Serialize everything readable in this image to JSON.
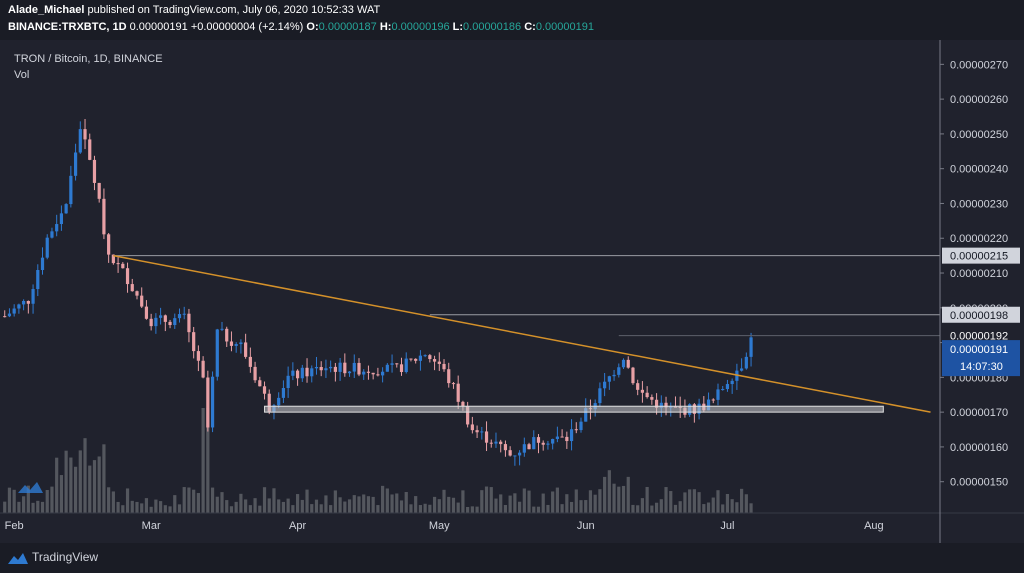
{
  "header": {
    "author": "Alade_Michael",
    "published": "published on TradingView.com, July 06, 2020 10:52:33 WAT",
    "symbol": "BINANCE:TRXBTC, 1D",
    "last": "0.00000191",
    "change": "+0.00000004 (+2.14%)",
    "o_label": "O:",
    "o_value": "0.00000187",
    "h_label": "H:",
    "h_value": "0.00000196",
    "l_label": "L:",
    "l_value": "0.00000186",
    "c_label": "C:",
    "c_value": "0.00000191"
  },
  "legend": {
    "title": "TRON / Bitcoin, 1D, BINANCE",
    "vol": "Vol"
  },
  "footer": {
    "brand": "TradingView"
  },
  "colors": {
    "bg": "#20222d",
    "up": "#2e7ad1",
    "down": "#e8a0a5",
    "trendline": "#d4912a",
    "volume": "#6b6d74",
    "level_line": "#9a9ca3",
    "current_price_bg": "#1e53a3"
  },
  "chart_data": {
    "type": "candlestick",
    "symbol": "TRON / Bitcoin",
    "timeframe": "1D",
    "exchange": "BINANCE",
    "y_ticks": [
      "0.00000270",
      "0.00000260",
      "0.00000250",
      "0.00000240",
      "0.00000230",
      "0.00000220",
      "0.00000210",
      "0.00000200",
      "0.00000190",
      "0.00000180",
      "0.00000170",
      "0.00000160",
      "0.00000150"
    ],
    "ylim": [
      1.41e-06,
      2.77e-06
    ],
    "x_ticks": [
      {
        "label": "Feb",
        "date": "2020-02-01"
      },
      {
        "label": "Mar",
        "date": "2020-03-01"
      },
      {
        "label": "Apr",
        "date": "2020-04-01"
      },
      {
        "label": "May",
        "date": "2020-05-01"
      },
      {
        "label": "Jun",
        "date": "2020-06-01"
      },
      {
        "label": "Jul",
        "date": "2020-07-01"
      },
      {
        "label": "Aug",
        "date": "2020-08-01"
      }
    ],
    "xlim": [
      "2020-01-29",
      "2020-08-15"
    ],
    "horizontal_levels": [
      {
        "price": 2.15e-06,
        "label": "0.00000215"
      },
      {
        "price": 1.98e-06,
        "label": "0.00000198"
      }
    ],
    "last_close_price_level": {
      "price": 1.92e-06,
      "label": "0.00000192"
    },
    "current_price": {
      "price": 1.91e-06,
      "label": "0.00000191",
      "countdown": "14:07:30"
    },
    "trendline": {
      "from": {
        "date": "2020-02-22",
        "price": 2.15e-06
      },
      "to": {
        "date": "2020-08-13",
        "price": 1.7e-06
      }
    },
    "support_zone": {
      "from": "2020-03-25",
      "to": "2020-08-03",
      "low": 1.7e-06,
      "high": 1.717e-06
    },
    "closes": [
      {
        "date": "2020-01-30",
        "price": 1.976e-06
      },
      {
        "date": "2020-02-04",
        "price": 2.023e-06
      },
      {
        "date": "2020-02-08",
        "price": 2.2e-06
      },
      {
        "date": "2020-02-12",
        "price": 2.3e-06
      },
      {
        "date": "2020-02-15",
        "price": 2.523e-06
      },
      {
        "date": "2020-02-18",
        "price": 2.369e-06
      },
      {
        "date": "2020-02-21",
        "price": 2.154e-06
      },
      {
        "date": "2020-02-25",
        "price": 2.085e-06
      },
      {
        "date": "2020-03-01",
        "price": 1.961e-06
      },
      {
        "date": "2020-03-08",
        "price": 1.969e-06
      },
      {
        "date": "2020-03-12",
        "price": 1.788e-06
      },
      {
        "date": "2020-03-13",
        "price": 1.654e-06
      },
      {
        "date": "2020-03-15",
        "price": 1.93e-06
      },
      {
        "date": "2020-03-20",
        "price": 1.892e-06
      },
      {
        "date": "2020-03-26",
        "price": 1.715e-06
      },
      {
        "date": "2020-03-30",
        "price": 1.8e-06
      },
      {
        "date": "2020-04-07",
        "price": 1.83e-06
      },
      {
        "date": "2020-04-15",
        "price": 1.823e-06
      },
      {
        "date": "2020-04-22",
        "price": 1.823e-06
      },
      {
        "date": "2020-04-28",
        "price": 1.869e-06
      },
      {
        "date": "2020-05-01",
        "price": 1.838e-06
      },
      {
        "date": "2020-05-04",
        "price": 1.769e-06
      },
      {
        "date": "2020-05-08",
        "price": 1.65e-06
      },
      {
        "date": "2020-05-12",
        "price": 1.619e-06
      },
      {
        "date": "2020-05-16",
        "price": 1.577e-06
      },
      {
        "date": "2020-05-22",
        "price": 1.623e-06
      },
      {
        "date": "2020-05-28",
        "price": 1.623e-06
      },
      {
        "date": "2020-06-02",
        "price": 1.715e-06
      },
      {
        "date": "2020-06-06",
        "price": 1.8e-06
      },
      {
        "date": "2020-06-09",
        "price": 1.862e-06
      },
      {
        "date": "2020-06-12",
        "price": 1.761e-06
      },
      {
        "date": "2020-06-18",
        "price": 1.708e-06
      },
      {
        "date": "2020-06-24",
        "price": 1.708e-06
      },
      {
        "date": "2020-06-28",
        "price": 1.731e-06
      },
      {
        "date": "2020-07-01",
        "price": 1.792e-06
      },
      {
        "date": "2020-07-04",
        "price": 1.838e-06
      },
      {
        "date": "2020-07-06",
        "price": 1.91e-06
      }
    ]
  }
}
